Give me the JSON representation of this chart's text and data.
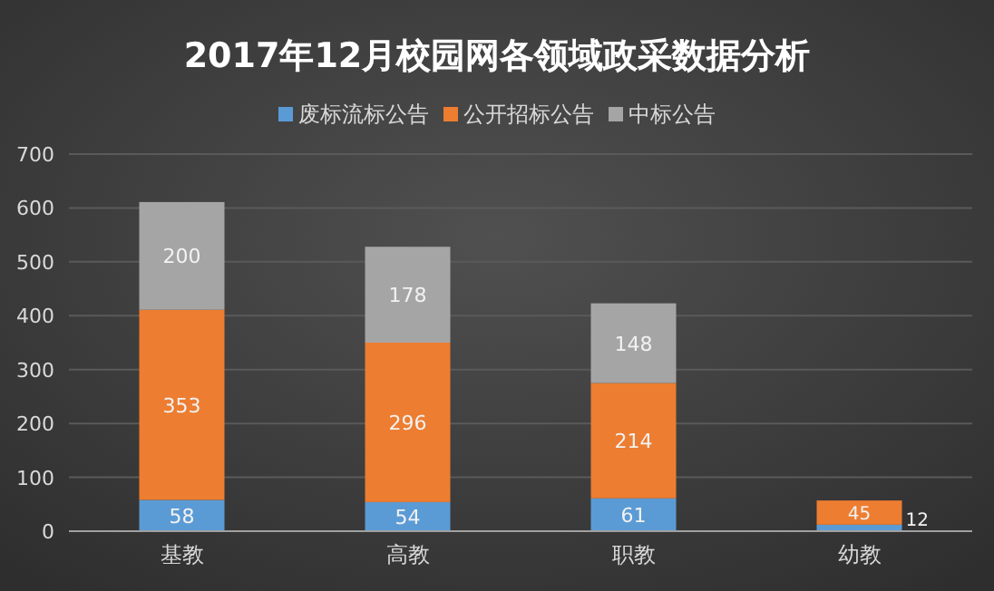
{
  "chart_data": {
    "type": "bar",
    "stacked": true,
    "title": "2017年12月校园网各领域政采数据分析",
    "categories": [
      "基教",
      "高教",
      "职教",
      "幼教"
    ],
    "series": [
      {
        "name": "废标流标公告",
        "color": "#5b9bd5",
        "values": [
          58,
          54,
          61,
          12
        ]
      },
      {
        "name": "公开招标公告",
        "color": "#ed7d31",
        "values": [
          353,
          296,
          214,
          45
        ]
      },
      {
        "name": "中标公告",
        "color": "#a5a5a5",
        "values": [
          200,
          178,
          148,
          null
        ]
      }
    ],
    "ylim": [
      0,
      700
    ],
    "yticks": [
      0,
      100,
      200,
      300,
      400,
      500,
      600,
      700
    ],
    "grid": "y",
    "legend": "top",
    "data_labels": true
  }
}
